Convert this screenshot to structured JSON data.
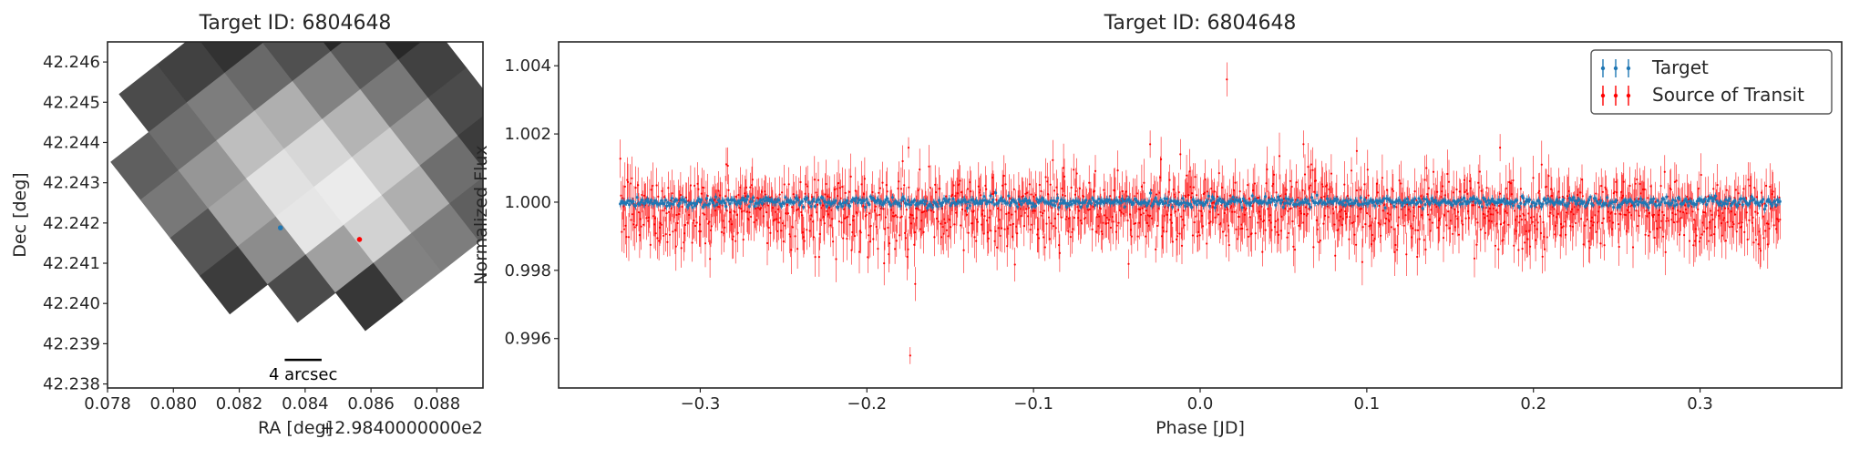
{
  "chart_data": [
    {
      "type": "heatmap",
      "title": "Target ID: 6804648",
      "xlabel": "RA [deg]",
      "ylabel": "Dec [deg]",
      "offset_text": "+2.9840000000e2",
      "xlim": [
        0.078,
        0.0894
      ],
      "ylim": [
        42.2379,
        42.2465
      ],
      "x_ticks": [
        "0.078",
        "0.080",
        "0.082",
        "0.084",
        "0.086",
        "0.088"
      ],
      "y_ticks": [
        "42.238",
        "42.239",
        "42.240",
        "42.241",
        "42.242",
        "42.243",
        "42.244",
        "42.245",
        "42.246"
      ],
      "colormap": "gray",
      "grid_rotation_deg": -38,
      "pixels": [
        [
          null,
          75,
          65,
          50,
          25,
          10,
          0
        ],
        [
          95,
          110,
          125,
          105,
          80,
          40,
          15
        ],
        [
          120,
          150,
          190,
          175,
          130,
          90,
          40
        ],
        [
          85,
          165,
          225,
          215,
          180,
          120,
          65
        ],
        [
          60,
          140,
          230,
          235,
          205,
          150,
          75
        ],
        [
          null,
          75,
          160,
          210,
          175,
          110,
          60
        ],
        [
          null,
          null,
          55,
          130,
          125,
          95,
          null
        ]
      ],
      "markers": [
        {
          "name": "Target",
          "ra": 0.08325,
          "dec": 42.24188,
          "color": "#1f77b4"
        },
        {
          "name": "Source of Transit",
          "ra": 0.08565,
          "dec": 42.24159,
          "color": "#ff0000"
        }
      ],
      "scalebar": {
        "label": "4 arcsec",
        "ra_start": 0.08338,
        "ra_end": 0.0845,
        "dec": 42.2386
      },
      "grid": false
    },
    {
      "type": "scatter",
      "title": "Target ID: 6804648",
      "xlabel": "Phase [JD]",
      "ylabel": "Normalized Flux",
      "xlim": [
        -0.385,
        0.385
      ],
      "ylim": [
        0.99455,
        1.0047
      ],
      "x_ticks": [
        "−0.3",
        "−0.2",
        "−0.1",
        "0.0",
        "0.1",
        "0.2",
        "0.3"
      ],
      "y_ticks": [
        "0.996",
        "0.998",
        "1.000",
        "1.002",
        "1.004"
      ],
      "grid": false,
      "legend_position": "top-right",
      "series": [
        {
          "name": "Target",
          "color": "#1f77b4",
          "x_range": [
            -0.348,
            0.348
          ],
          "center": 1.0,
          "spread": 7e-05,
          "error": 0.0001
        },
        {
          "name": "Source of Transit",
          "color": "#ff0000",
          "x_range": [
            -0.348,
            0.348
          ],
          "center": 0.99975,
          "spread": 0.00055,
          "error": 0.00055,
          "outliers": [
            {
              "x": 0.016,
              "y": 1.0036,
              "err": 0.0005
            },
            {
              "x": -0.174,
              "y": 0.9955,
              "err": 0.00025
            },
            {
              "x": -0.171,
              "y": 0.9976,
              "err": 0.0005
            },
            {
              "x": 0.062,
              "y": 1.0017,
              "err": 0.0004
            },
            {
              "x": -0.175,
              "y": 1.0016,
              "err": 0.0003
            },
            {
              "x": -0.03,
              "y": 1.0017,
              "err": 0.0004
            },
            {
              "x": 0.18,
              "y": 1.0016,
              "err": 0.0004
            },
            {
              "x": 0.094,
              "y": 1.0015,
              "err": 0.0004
            }
          ]
        }
      ]
    }
  ]
}
